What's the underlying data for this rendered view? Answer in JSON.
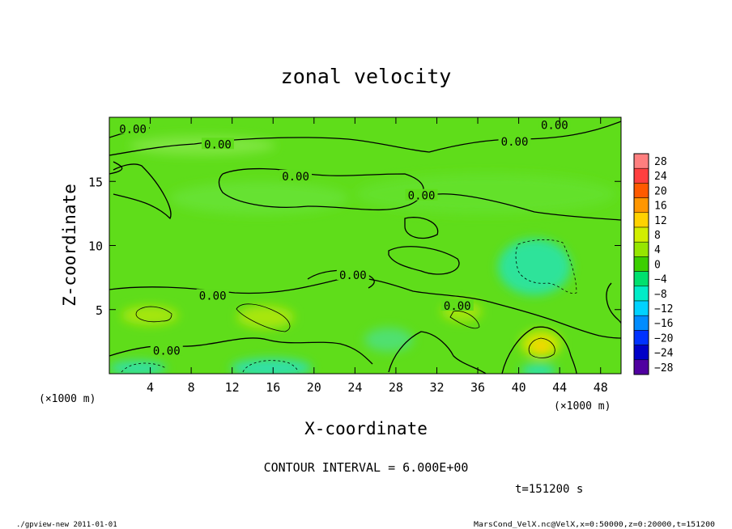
{
  "chart_data": {
    "type": "heatmap",
    "title": "zonal velocity",
    "xlabel": "X-coordinate",
    "ylabel": "Z-coordinate",
    "x_unit_label": "(×1000 m)",
    "y_unit_label": "(×1000 m)",
    "xlim": [
      0,
      50
    ],
    "ylim": [
      0,
      20
    ],
    "x_ticks": [
      "4",
      "8",
      "12",
      "16",
      "20",
      "24",
      "28",
      "32",
      "36",
      "40",
      "44",
      "48"
    ],
    "y_ticks": [
      "5",
      "10",
      "15"
    ],
    "colorbar": {
      "levels": [
        "28",
        "24",
        "20",
        "16",
        "12",
        "8",
        "4",
        "0",
        "−4",
        "−8",
        "−12",
        "−16",
        "−20",
        "−24",
        "−28"
      ],
      "colors": [
        "#ff7f7f",
        "#ff3f3f",
        "#ff5a00",
        "#ff9600",
        "#ffd200",
        "#d2ee00",
        "#96e600",
        "#3ccf00",
        "#00e06e",
        "#00ecc8",
        "#00d2ff",
        "#008cff",
        "#0032ff",
        "#0000c8",
        "#5000a0"
      ]
    },
    "contour_labels": [
      {
        "text": "0.00",
        "x": 2.3,
        "z": 19.1
      },
      {
        "text": "0.00",
        "x": 10.6,
        "z": 17.9
      },
      {
        "text": "0.00",
        "x": 18.2,
        "z": 15.4
      },
      {
        "text": "0.00",
        "x": 30.5,
        "z": 13.9
      },
      {
        "text": "0.00",
        "x": 43.5,
        "z": 19.4
      },
      {
        "text": "0.00",
        "x": 39.6,
        "z": 18.1
      },
      {
        "text": "0.00",
        "x": 23.8,
        "z": 7.7
      },
      {
        "text": "0.00",
        "x": 10.1,
        "z": 6.1
      },
      {
        "text": "0.00",
        "x": 34.0,
        "z": 5.3
      },
      {
        "text": "0.00",
        "x": 5.6,
        "z": 1.8
      }
    ],
    "contour_interval_text": "CONTOUR INTERVAL = 6.000E+00",
    "time_text": "t=151200 s",
    "footer_left": "./gpview-new  2011-01-01",
    "footer_right": "MarsCond_VelX.nc@VelX,x=0:50000,z=0:20000,t=151200"
  }
}
